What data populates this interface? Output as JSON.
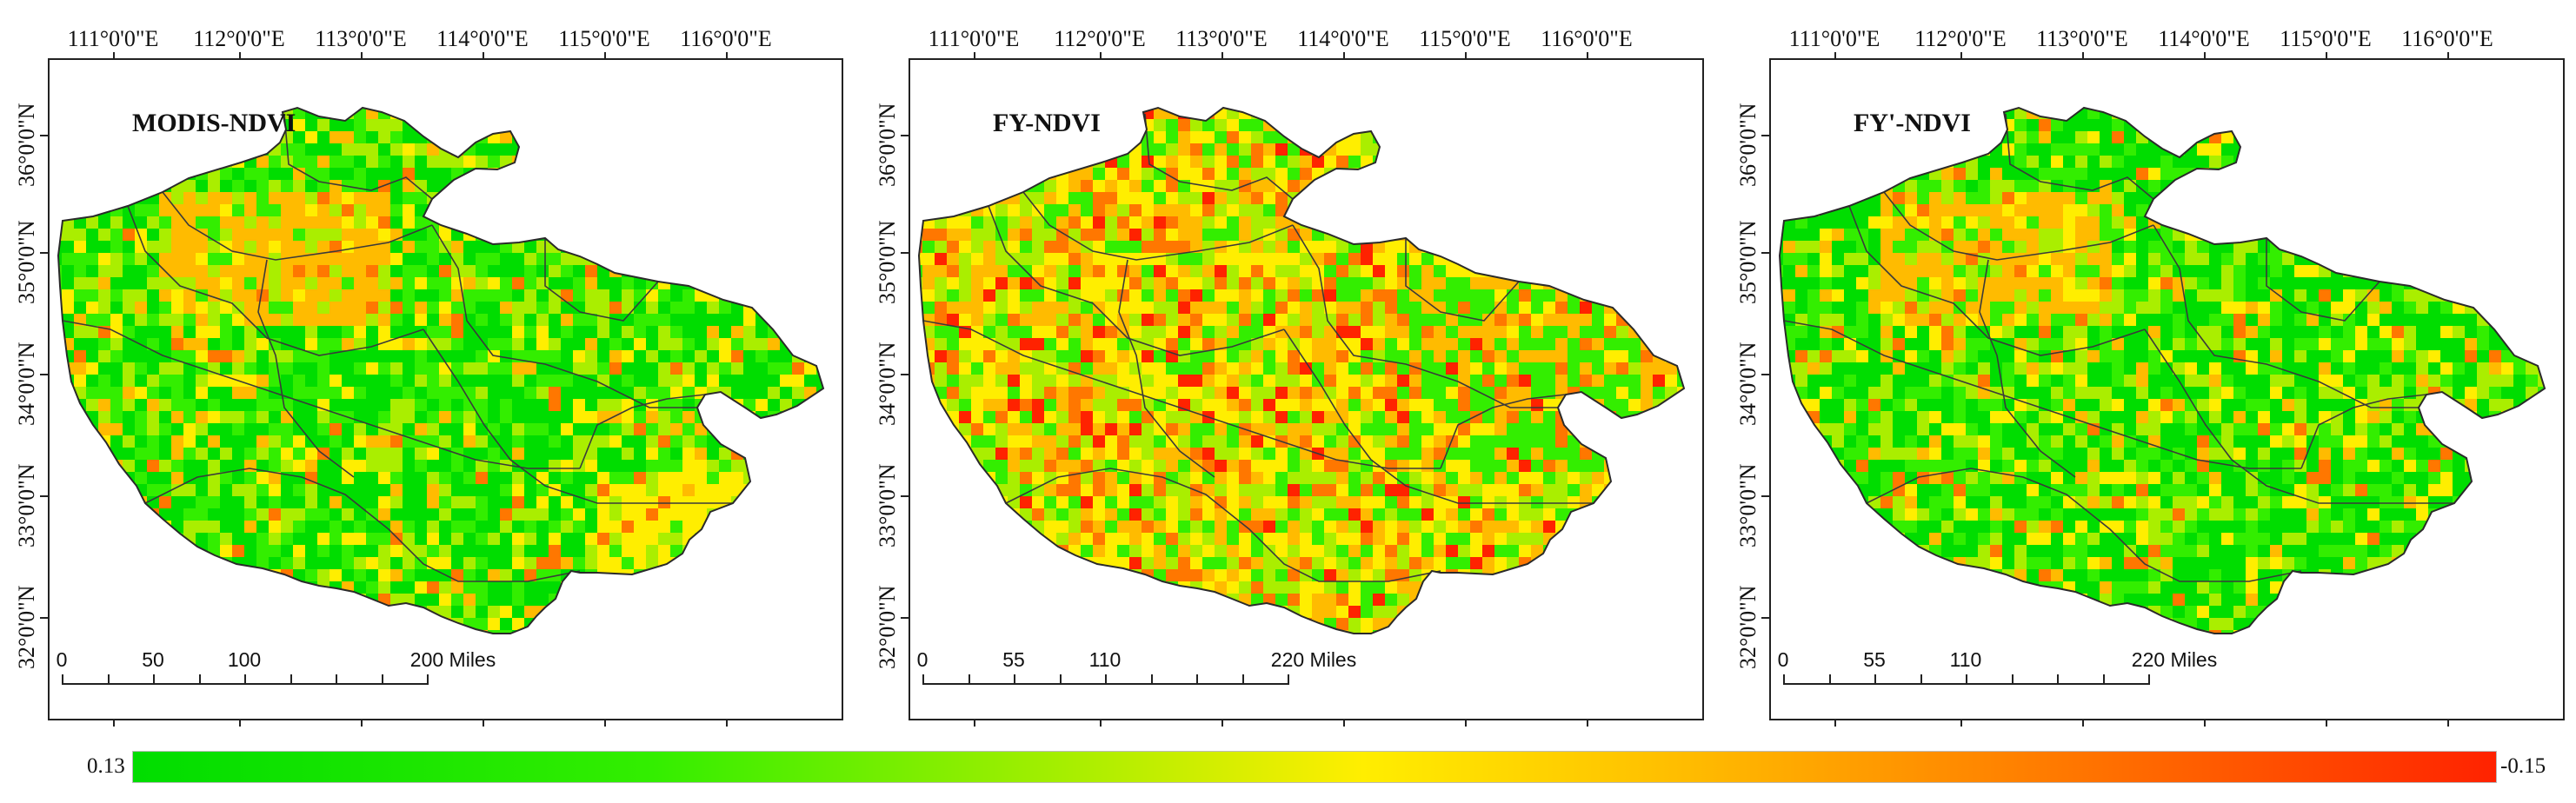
{
  "longitude_labels": [
    "111°0'0\"E",
    "112°0'0\"E",
    "113°0'0\"E",
    "114°0'0\"E",
    "115°0'0\"E",
    "116°0'0\"E"
  ],
  "latitude_labels": [
    "36°0'0\"N",
    "35°0'0\"N",
    "34°0'0\"N",
    "33°0'0\"N",
    "32°0'0\"N"
  ],
  "panels": [
    {
      "title": "MODIS-NDVI",
      "scalebar": {
        "labels": [
          "0",
          "50",
          "100",
          "200 Miles"
        ],
        "values": [
          0,
          50,
          100,
          200
        ],
        "max": 200
      },
      "tone": "green-dominant"
    },
    {
      "title": "FY-NDVI",
      "scalebar": {
        "labels": [
          "0",
          "55",
          "110",
          "220 Miles"
        ],
        "values": [
          0,
          55,
          110,
          220
        ],
        "max": 220
      },
      "tone": "orange-dominant"
    },
    {
      "title": "FY'-NDVI",
      "scalebar": {
        "labels": [
          "0",
          "55",
          "110",
          "220 Miles"
        ],
        "values": [
          0,
          55,
          110,
          220
        ],
        "max": 220
      },
      "tone": "green-dominant"
    }
  ],
  "colorbar": {
    "min_label": "0.13",
    "max_label": "-0.15",
    "colors": [
      "#00dd00",
      "#33ee00",
      "#aaee00",
      "#ffee00",
      "#ffbb00",
      "#ff7700",
      "#ff2200"
    ]
  }
}
